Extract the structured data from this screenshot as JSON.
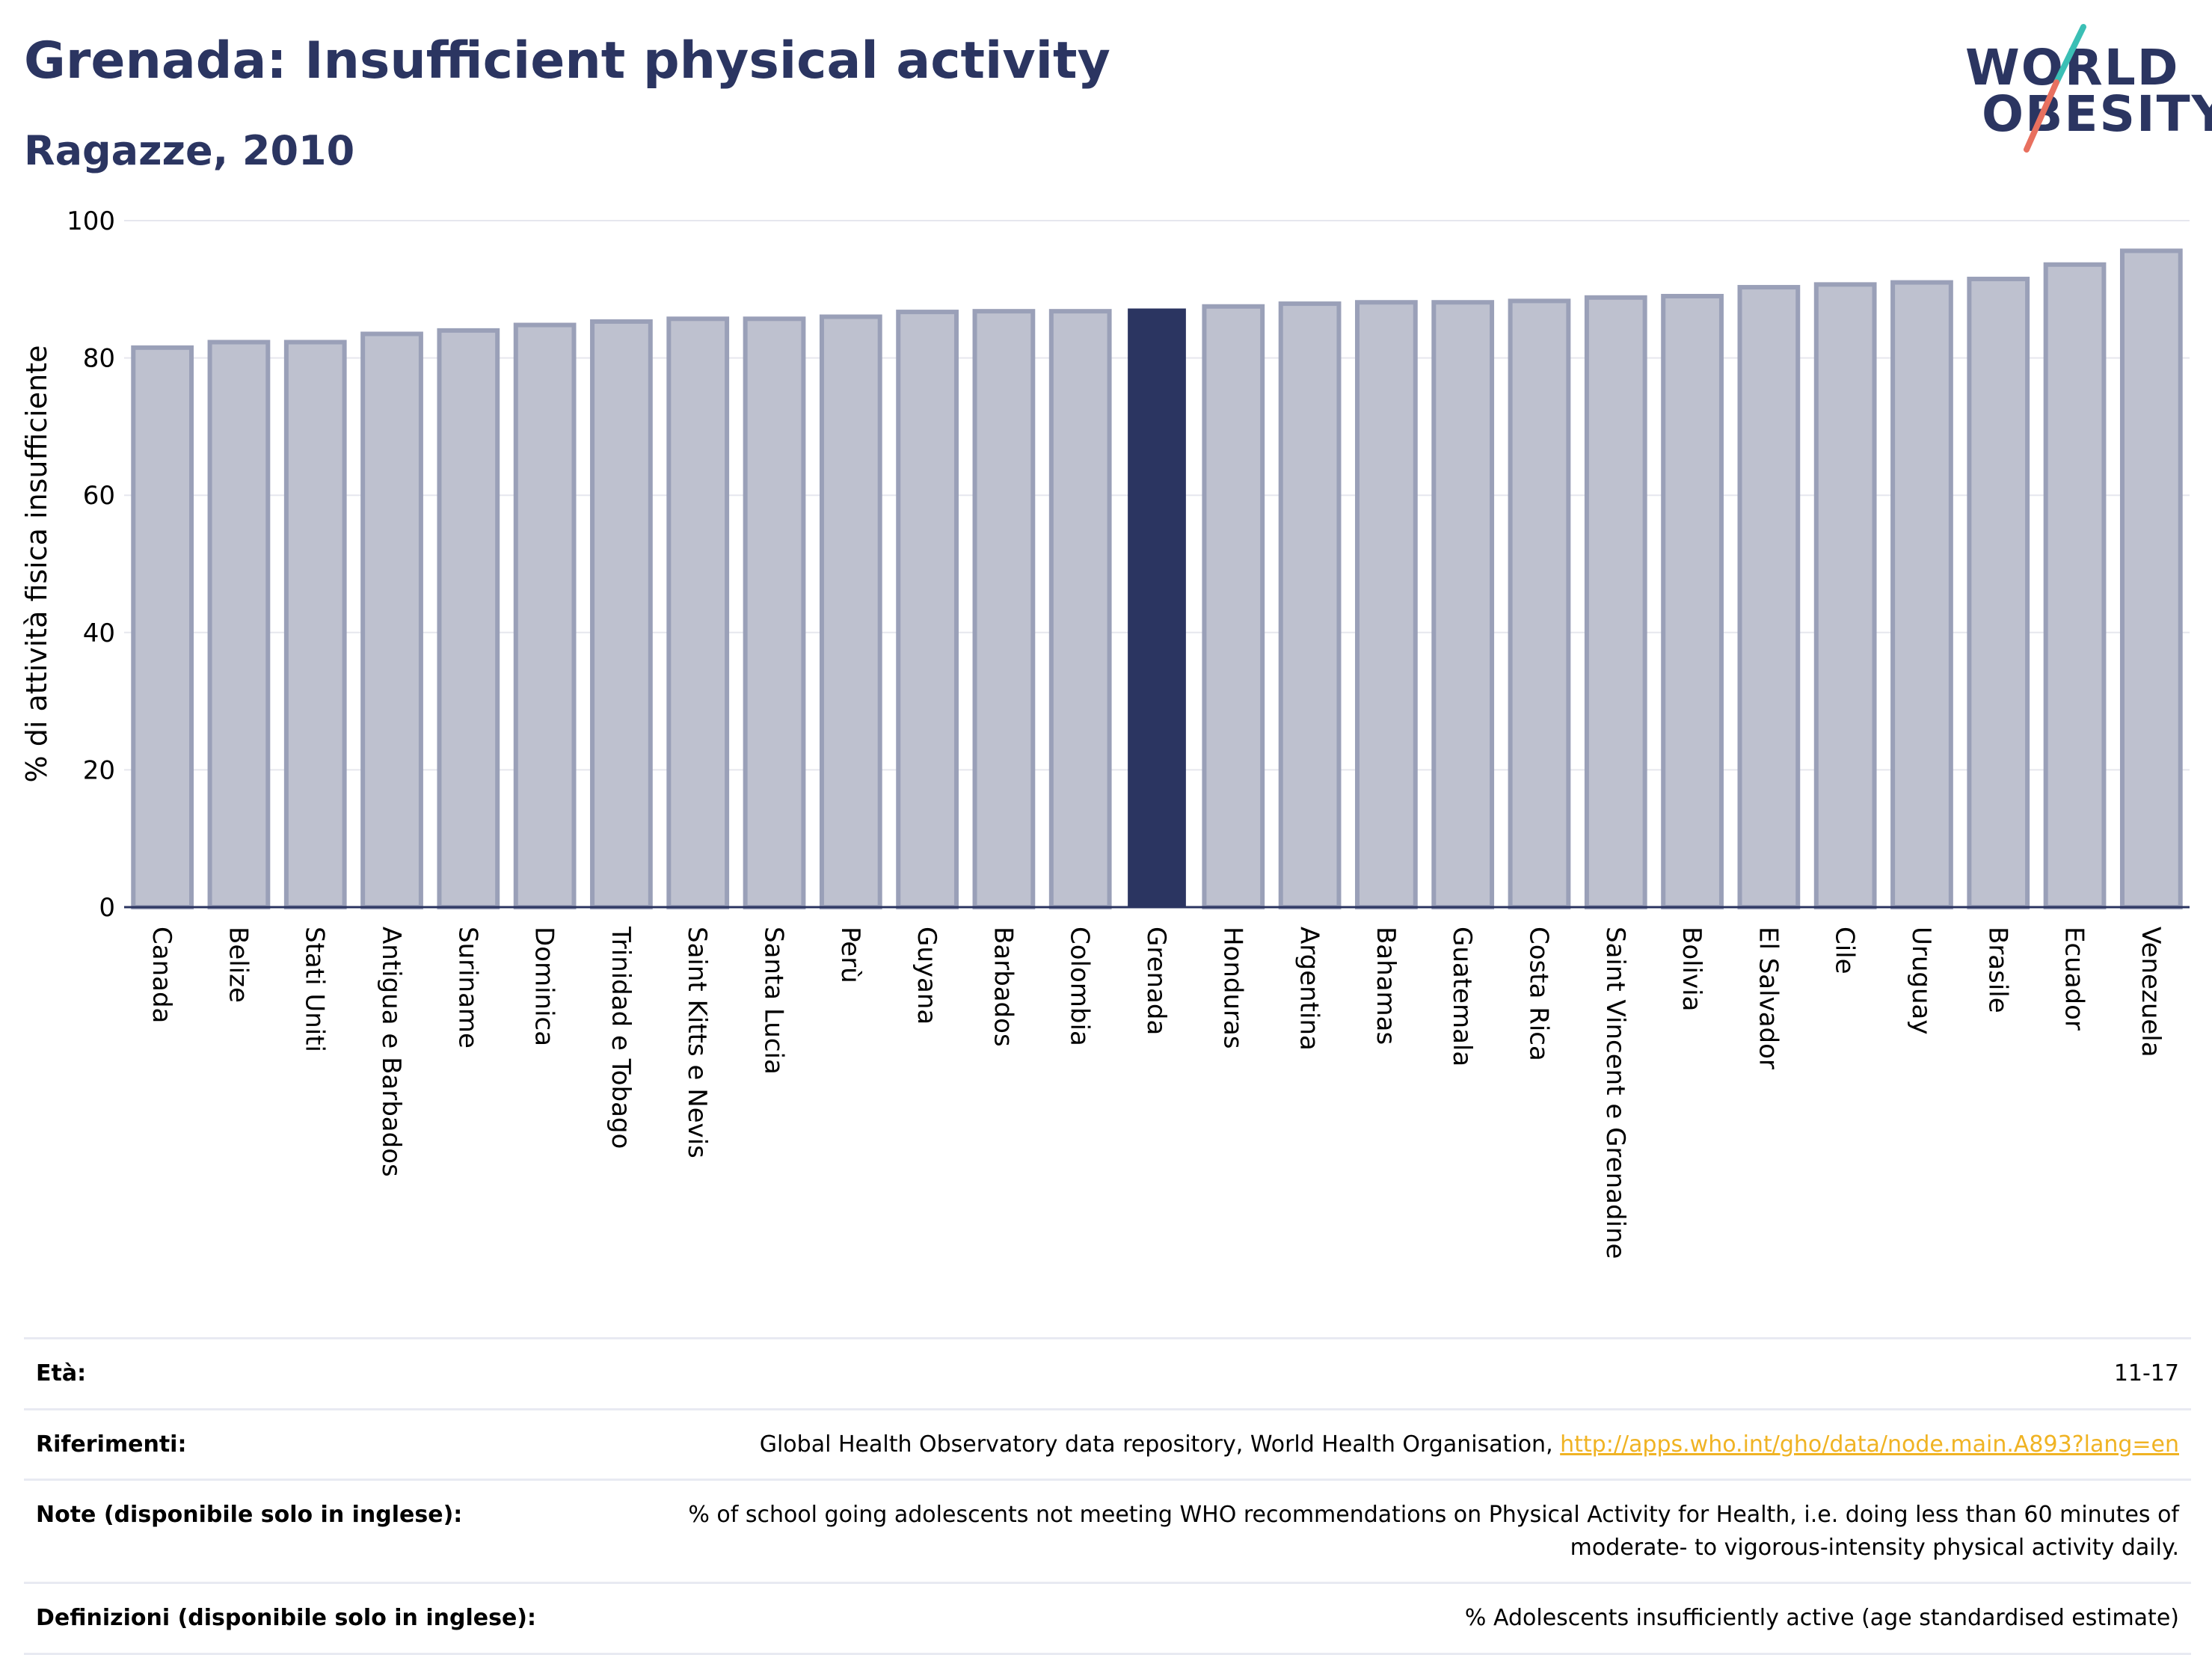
{
  "header": {
    "title": "Grenada: Insufficient physical activity",
    "subtitle": "Ragazze, 2010"
  },
  "logo": {
    "line1": "WORLD",
    "line2": "OBESITY",
    "slash_colors": [
      "#3bbfb5",
      "#e8705f"
    ]
  },
  "colors": {
    "bar": "#bec1cf",
    "bar_border": "#9aa0b8",
    "highlight": "#2b3561",
    "text": "#2b3561",
    "link": "#f0b323",
    "grid": "#e6e7ee"
  },
  "chart_data": {
    "type": "bar",
    "ylabel": "% di attività fisica insufficiente",
    "ylim": [
      0,
      100
    ],
    "yticks": [
      0,
      20,
      40,
      60,
      80,
      100
    ],
    "grid": true,
    "highlight": "Grenada",
    "categories": [
      "Canada",
      "Belize",
      "Stati Uniti",
      "Antigua e Barbados",
      "Suriname",
      "Dominica",
      "Trinidad e Tobago",
      "Saint Kitts e Nevis",
      "Santa Lucia",
      "Perù",
      "Guyana",
      "Barbados",
      "Colombia",
      "Grenada",
      "Honduras",
      "Argentina",
      "Bahamas",
      "Guatemala",
      "Costa Rica",
      "Saint Vincent e Grenadine",
      "Bolivia",
      "El Salvador",
      "Cile",
      "Uruguay",
      "Brasile",
      "Ecuador",
      "Venezuela"
    ],
    "values": [
      81.5,
      82.3,
      82.3,
      83.5,
      84.0,
      84.8,
      85.3,
      85.7,
      85.7,
      86.0,
      86.7,
      86.8,
      86.8,
      87.2,
      87.5,
      87.9,
      88.1,
      88.1,
      88.3,
      88.8,
      89.0,
      90.3,
      90.7,
      91.0,
      91.5,
      93.6,
      95.6
    ]
  },
  "meta": {
    "rows": [
      {
        "label": "Età:",
        "value": "11-17"
      },
      {
        "label": "Riferimenti:",
        "value": "Global Health Observatory data repository, World Health Organisation, ",
        "link": "http://apps.who.int/gho/data/node.main.A893?lang=en"
      },
      {
        "label": "Note (disponibile solo in inglese):",
        "value": "% of school going adolescents not meeting WHO recommendations on Physical Activity for Health, i.e. doing less than 60 minutes of moderate- to vigorous-intensity physical activity daily."
      },
      {
        "label": "Definizioni (disponibile solo in inglese):",
        "value": "% Adolescents insufficiently active (age standardised estimate)"
      }
    ]
  }
}
